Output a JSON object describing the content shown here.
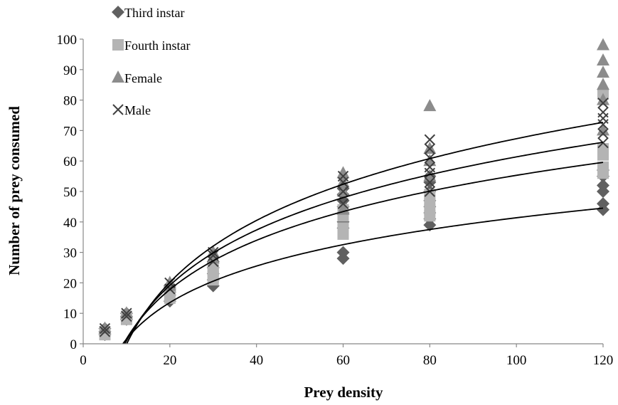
{
  "chart_data": {
    "type": "scatter",
    "xlabel": "Prey density",
    "ylabel": "Number of prey consumed",
    "xlim": [
      0,
      120
    ],
    "ylim": [
      0,
      100
    ],
    "xticks": [
      "0",
      "20",
      "40",
      "60",
      "80",
      "100",
      "120"
    ],
    "yticks": [
      "0",
      "10",
      "20",
      "30",
      "40",
      "50",
      "60",
      "70",
      "80",
      "90",
      "100"
    ],
    "grid": false,
    "legend_position": "top-left",
    "series": [
      {
        "name": "Third instar",
        "marker": "diamond",
        "color": "#606060",
        "points": [
          [
            5,
            3
          ],
          [
            5,
            4
          ],
          [
            5,
            5
          ],
          [
            10,
            8
          ],
          [
            10,
            9
          ],
          [
            10,
            10
          ],
          [
            20,
            14
          ],
          [
            20,
            16
          ],
          [
            20,
            17
          ],
          [
            20,
            18
          ],
          [
            20,
            19
          ],
          [
            30,
            19
          ],
          [
            30,
            21
          ],
          [
            30,
            23
          ],
          [
            30,
            25
          ],
          [
            30,
            27
          ],
          [
            60,
            28
          ],
          [
            60,
            30
          ],
          [
            60,
            38
          ],
          [
            60,
            40
          ],
          [
            60,
            43
          ],
          [
            60,
            45
          ],
          [
            60,
            47
          ],
          [
            60,
            49
          ],
          [
            60,
            51
          ],
          [
            80,
            39
          ],
          [
            80,
            41
          ],
          [
            80,
            43
          ],
          [
            80,
            45
          ],
          [
            80,
            47
          ],
          [
            80,
            50
          ],
          [
            80,
            53
          ],
          [
            80,
            55
          ],
          [
            120,
            44
          ],
          [
            120,
            46
          ],
          [
            120,
            50
          ],
          [
            120,
            52
          ],
          [
            120,
            55
          ],
          [
            120,
            57
          ]
        ],
        "fit": {
          "a": -38.3,
          "b": 17.3
        }
      },
      {
        "name": "Fourth instar",
        "marker": "square",
        "color": "#b4b4b4",
        "points": [
          [
            5,
            3
          ],
          [
            5,
            4
          ],
          [
            10,
            8
          ],
          [
            10,
            9
          ],
          [
            20,
            15
          ],
          [
            20,
            17
          ],
          [
            30,
            21
          ],
          [
            30,
            22
          ],
          [
            30,
            24
          ],
          [
            30,
            25
          ],
          [
            60,
            36
          ],
          [
            60,
            38
          ],
          [
            60,
            42
          ],
          [
            60,
            44
          ],
          [
            80,
            42
          ],
          [
            80,
            44
          ],
          [
            80,
            47
          ],
          [
            80,
            49
          ],
          [
            120,
            56
          ],
          [
            120,
            58
          ],
          [
            120,
            62
          ],
          [
            120,
            64
          ],
          [
            120,
            82
          ]
        ],
        "fit": {
          "a": -52.0,
          "b": 23.3
        }
      },
      {
        "name": "Female",
        "marker": "triangle",
        "color": "#8c8c8c",
        "points": [
          [
            5,
            5
          ],
          [
            10,
            10
          ],
          [
            20,
            19
          ],
          [
            20,
            20
          ],
          [
            30,
            28
          ],
          [
            30,
            30
          ],
          [
            60,
            44
          ],
          [
            60,
            50
          ],
          [
            60,
            53
          ],
          [
            60,
            56
          ],
          [
            80,
            55
          ],
          [
            80,
            60
          ],
          [
            80,
            64
          ],
          [
            80,
            78
          ],
          [
            120,
            70
          ],
          [
            120,
            80
          ],
          [
            120,
            85
          ],
          [
            120,
            89
          ],
          [
            120,
            93
          ],
          [
            120,
            98
          ]
        ],
        "fit": {
          "a": -67.6,
          "b": 29.3
        }
      },
      {
        "name": "Male",
        "marker": "x",
        "color": "#404040",
        "points": [
          [
            5,
            4
          ],
          [
            5,
            5
          ],
          [
            10,
            9
          ],
          [
            10,
            10
          ],
          [
            20,
            18
          ],
          [
            20,
            20
          ],
          [
            30,
            27
          ],
          [
            30,
            29
          ],
          [
            30,
            30
          ],
          [
            60,
            46
          ],
          [
            60,
            50
          ],
          [
            60,
            53
          ],
          [
            60,
            55
          ],
          [
            80,
            50
          ],
          [
            80,
            53
          ],
          [
            80,
            56
          ],
          [
            80,
            58
          ],
          [
            80,
            61
          ],
          [
            80,
            64
          ],
          [
            80,
            67
          ],
          [
            120,
            66
          ],
          [
            120,
            69
          ],
          [
            120,
            72
          ],
          [
            120,
            74
          ],
          [
            120,
            76
          ],
          [
            120,
            79
          ]
        ],
        "fit": {
          "a": -59.3,
          "b": 26.2
        }
      }
    ]
  }
}
